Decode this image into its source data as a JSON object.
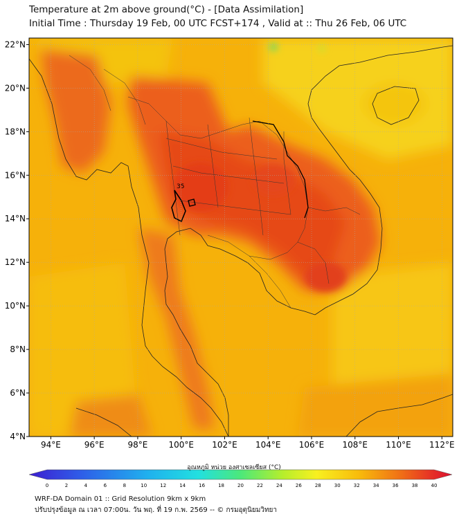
{
  "header": {
    "title_line1": "Temperature at 2m above ground(°C) - [Data Assimilation]",
    "title_line2": "Initial Time : Thursday 19 Feb, 00 UTC FCST+174 , Valid at :: Thu 26 Feb, 06 UTC"
  },
  "map": {
    "lat_labels": [
      "22°N",
      "20°N",
      "18°N",
      "16°N",
      "14°N",
      "12°N",
      "10°N",
      "8°N",
      "6°N",
      "4°N"
    ],
    "lon_labels": [
      "94°E",
      "96°E",
      "98°E",
      "100°E",
      "102°E",
      "104°E",
      "106°E",
      "108°E",
      "110°E",
      "112°E"
    ],
    "extent": {
      "lon_min": 93,
      "lon_max": 112.5,
      "lat_min": 4,
      "lat_max": 22.3
    },
    "contour_label": "35",
    "colors": {
      "ocean": "#f7b500",
      "hot": "#ea5a1f",
      "hotter": "#e44516",
      "warm": "#f39c0e",
      "cool": "#f8dd20"
    }
  },
  "colorbar": {
    "label": "อุณหภูมิ หน่วย องศาเซลเซียส (°C)",
    "ticks": [
      "0",
      "2",
      "4",
      "6",
      "8",
      "10",
      "12",
      "14",
      "16",
      "18",
      "20",
      "22",
      "24",
      "26",
      "28",
      "30",
      "32",
      "34",
      "36",
      "38",
      "40"
    ],
    "min": 0,
    "max": 40
  },
  "footer": {
    "line1": "WRF-DA Domain 01 :: Grid Resolution 9km x 9km",
    "line2": "ปรับปรุงข้อมูล ณ เวลา 07:00น. วัน พฤ. ที่ 19 ก.พ. 2569 -- © กรมอุตุนิยมวิทยา"
  }
}
